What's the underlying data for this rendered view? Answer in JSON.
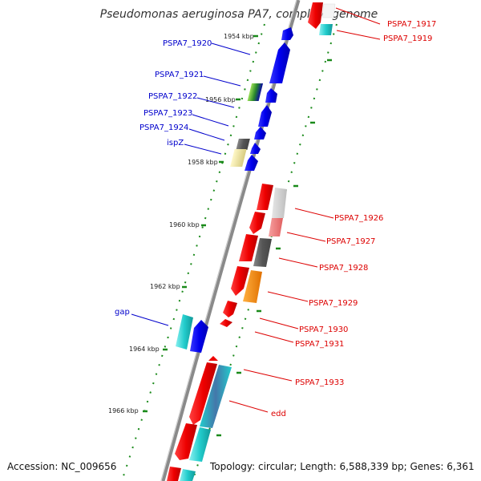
{
  "title": "Pseudomonas aeruginosa PA7, complete genome",
  "footer": {
    "accession": "Accession: NC_009656",
    "topology": "Topology: circular; Length: 6,588,339 bp; Genes: 6,361"
  },
  "colors": {
    "forward": "#0000ee",
    "reverse": "#ee0000",
    "tick": "#1a8a1a",
    "backbone": "#8a8a8a",
    "label_forward": "#0000cc",
    "label_reverse": "#dd0000"
  },
  "scale": {
    "unit": "kbp",
    "labels": [
      "1954 kbp",
      "1956 kbp",
      "1958 kbp",
      "1960 kbp",
      "1962 kbp",
      "1964 kbp",
      "1966 kbp"
    ]
  },
  "forward_genes": [
    {
      "name": "PSPA7_1920",
      "color": "#0000ee"
    },
    {
      "name": "PSPA7_1921",
      "color": "#6fbf3a"
    },
    {
      "name": "PSPA7_1922",
      "color": "#0000ee"
    },
    {
      "name": "PSPA7_1923",
      "color": "#0000ee"
    },
    {
      "name": "PSPA7_1924",
      "color": "#0000ee"
    },
    {
      "name": "ispZ",
      "color": "#f0e6a0"
    },
    {
      "name": "gap",
      "color": "#22cccc"
    }
  ],
  "reverse_genes": [
    {
      "name": "PSPA7_1917",
      "color": "#ee0000"
    },
    {
      "name": "PSPA7_1919",
      "color": "#22dddd"
    },
    {
      "name": "PSPA7_1926",
      "color": "#cccccc"
    },
    {
      "name": "PSPA7_1927",
      "color": "#ee8080"
    },
    {
      "name": "PSPA7_1928",
      "color": "#666666"
    },
    {
      "name": "PSPA7_1929",
      "color": "#ff8c00"
    },
    {
      "name": "PSPA7_1930",
      "color": "#ee0000"
    },
    {
      "name": "PSPA7_1931",
      "color": "#ee0000"
    },
    {
      "name": "PSPA7_1933",
      "color": "#22cccc"
    },
    {
      "name": "edd",
      "color": "#22cccc"
    }
  ]
}
